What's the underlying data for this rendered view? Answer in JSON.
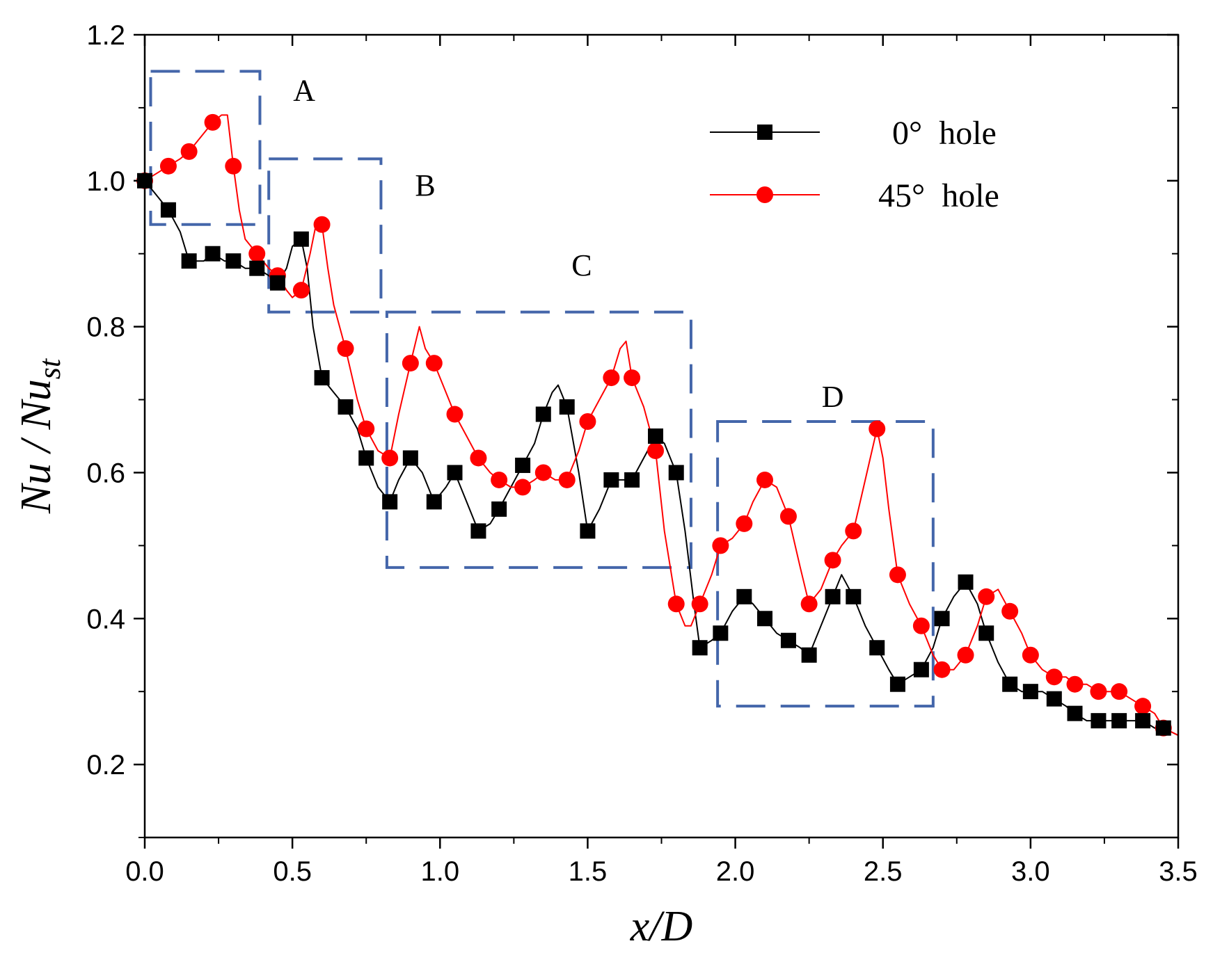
{
  "chart_data": {
    "type": "line",
    "title": "",
    "xlabel": "x/D",
    "ylabel": {
      "base": "Nu / Nu",
      "sub": "st"
    },
    "xlim": [
      0.0,
      3.5
    ],
    "ylim": [
      0.1,
      1.2
    ],
    "xticks": [
      "0.0",
      "0.5",
      "1.0",
      "1.5",
      "2.0",
      "2.5",
      "3.0",
      "3.5"
    ],
    "yticks": [
      "0.2",
      "0.4",
      "0.6",
      "0.8",
      "1.0",
      "1.2"
    ],
    "xtick_values": [
      0.0,
      0.5,
      1.0,
      1.5,
      2.0,
      2.5,
      3.0,
      3.5
    ],
    "ytick_values": [
      0.2,
      0.4,
      0.6,
      0.8,
      1.0,
      1.2
    ],
    "legend_position": "top-right",
    "series": [
      {
        "name": "0°  hole",
        "color": "#000000",
        "marker": "square",
        "markers": {
          "x": [
            0.0,
            0.08,
            0.15,
            0.23,
            0.3,
            0.38,
            0.45,
            0.53,
            0.6,
            0.68,
            0.75,
            0.83,
            0.9,
            0.98,
            1.05,
            1.13,
            1.2,
            1.28,
            1.35,
            1.43,
            1.5,
            1.58,
            1.65,
            1.73,
            1.8,
            1.88,
            1.95,
            2.03,
            2.1,
            2.18,
            2.25,
            2.33,
            2.4,
            2.48,
            2.55,
            2.63,
            2.7,
            2.78,
            2.85,
            2.93,
            3.0,
            3.08,
            3.15,
            3.23,
            3.3,
            3.38,
            3.45
          ],
          "y": [
            1.0,
            0.96,
            0.89,
            0.9,
            0.89,
            0.88,
            0.86,
            0.92,
            0.73,
            0.69,
            0.62,
            0.56,
            0.62,
            0.56,
            0.6,
            0.52,
            0.55,
            0.61,
            0.68,
            0.69,
            0.52,
            0.59,
            0.59,
            0.65,
            0.6,
            0.36,
            0.38,
            0.43,
            0.4,
            0.37,
            0.35,
            0.43,
            0.43,
            0.36,
            0.31,
            0.33,
            0.4,
            0.45,
            0.38,
            0.31,
            0.3,
            0.29,
            0.27,
            0.26,
            0.26,
            0.26,
            0.25
          ]
        },
        "line": {
          "x": [
            0.0,
            0.04,
            0.08,
            0.12,
            0.15,
            0.2,
            0.23,
            0.27,
            0.3,
            0.34,
            0.38,
            0.42,
            0.45,
            0.48,
            0.5,
            0.53,
            0.55,
            0.57,
            0.6,
            0.64,
            0.68,
            0.72,
            0.75,
            0.79,
            0.83,
            0.86,
            0.9,
            0.94,
            0.98,
            1.02,
            1.05,
            1.09,
            1.13,
            1.17,
            1.2,
            1.24,
            1.28,
            1.32,
            1.35,
            1.38,
            1.4,
            1.43,
            1.47,
            1.5,
            1.54,
            1.58,
            1.62,
            1.65,
            1.69,
            1.73,
            1.76,
            1.8,
            1.83,
            1.86,
            1.88,
            1.92,
            1.95,
            1.99,
            2.03,
            2.06,
            2.1,
            2.14,
            2.18,
            2.22,
            2.25,
            2.29,
            2.33,
            2.36,
            2.4,
            2.44,
            2.48,
            2.52,
            2.55,
            2.59,
            2.63,
            2.67,
            2.7,
            2.74,
            2.78,
            2.82,
            2.85,
            2.89,
            2.93,
            2.97,
            3.0,
            3.04,
            3.08,
            3.12,
            3.15,
            3.19,
            3.23,
            3.27,
            3.3,
            3.34,
            3.38,
            3.42,
            3.45,
            3.5
          ],
          "y": [
            1.0,
            0.98,
            0.96,
            0.93,
            0.89,
            0.89,
            0.9,
            0.89,
            0.89,
            0.88,
            0.88,
            0.87,
            0.86,
            0.88,
            0.91,
            0.92,
            0.88,
            0.8,
            0.73,
            0.71,
            0.69,
            0.66,
            0.62,
            0.58,
            0.56,
            0.59,
            0.62,
            0.6,
            0.56,
            0.58,
            0.6,
            0.56,
            0.52,
            0.53,
            0.55,
            0.58,
            0.61,
            0.64,
            0.68,
            0.71,
            0.72,
            0.69,
            0.6,
            0.52,
            0.55,
            0.59,
            0.59,
            0.59,
            0.62,
            0.65,
            0.64,
            0.6,
            0.52,
            0.42,
            0.36,
            0.37,
            0.38,
            0.41,
            0.43,
            0.42,
            0.4,
            0.38,
            0.37,
            0.36,
            0.35,
            0.39,
            0.43,
            0.46,
            0.43,
            0.39,
            0.36,
            0.33,
            0.31,
            0.32,
            0.33,
            0.36,
            0.4,
            0.43,
            0.45,
            0.42,
            0.38,
            0.34,
            0.31,
            0.3,
            0.3,
            0.3,
            0.29,
            0.28,
            0.27,
            0.26,
            0.26,
            0.26,
            0.26,
            0.26,
            0.26,
            0.25,
            0.25,
            0.24
          ]
        }
      },
      {
        "name": "45°  hole",
        "color": "#ff0000",
        "marker": "circle",
        "markers": {
          "x": [
            0.0,
            0.08,
            0.15,
            0.23,
            0.3,
            0.38,
            0.45,
            0.53,
            0.6,
            0.68,
            0.75,
            0.83,
            0.9,
            0.98,
            1.05,
            1.13,
            1.2,
            1.28,
            1.35,
            1.43,
            1.5,
            1.58,
            1.65,
            1.73,
            1.8,
            1.88,
            1.95,
            2.03,
            2.1,
            2.18,
            2.25,
            2.33,
            2.4,
            2.48,
            2.55,
            2.63,
            2.7,
            2.78,
            2.85,
            2.93,
            3.0,
            3.08,
            3.15,
            3.23,
            3.3,
            3.38,
            3.45
          ],
          "y": [
            1.0,
            1.02,
            1.04,
            1.08,
            1.02,
            0.9,
            0.87,
            0.85,
            0.94,
            0.77,
            0.66,
            0.62,
            0.75,
            0.75,
            0.68,
            0.62,
            0.59,
            0.58,
            0.6,
            0.59,
            0.67,
            0.73,
            0.73,
            0.63,
            0.42,
            0.42,
            0.5,
            0.53,
            0.59,
            0.54,
            0.42,
            0.48,
            0.52,
            0.66,
            0.46,
            0.39,
            0.33,
            0.35,
            0.43,
            0.41,
            0.35,
            0.32,
            0.31,
            0.3,
            0.3,
            0.28,
            0.25
          ]
        },
        "line": {
          "x": [
            0.0,
            0.04,
            0.08,
            0.12,
            0.15,
            0.19,
            0.23,
            0.26,
            0.28,
            0.3,
            0.32,
            0.34,
            0.38,
            0.42,
            0.45,
            0.48,
            0.5,
            0.53,
            0.56,
            0.58,
            0.6,
            0.62,
            0.64,
            0.68,
            0.72,
            0.75,
            0.79,
            0.83,
            0.86,
            0.9,
            0.93,
            0.95,
            0.98,
            1.02,
            1.05,
            1.09,
            1.13,
            1.17,
            1.2,
            1.24,
            1.28,
            1.32,
            1.35,
            1.39,
            1.43,
            1.47,
            1.5,
            1.54,
            1.58,
            1.61,
            1.63,
            1.65,
            1.69,
            1.73,
            1.76,
            1.8,
            1.83,
            1.85,
            1.88,
            1.92,
            1.95,
            1.99,
            2.03,
            2.06,
            2.1,
            2.14,
            2.18,
            2.22,
            2.25,
            2.29,
            2.33,
            2.36,
            2.4,
            2.44,
            2.48,
            2.5,
            2.52,
            2.55,
            2.59,
            2.63,
            2.67,
            2.7,
            2.74,
            2.78,
            2.82,
            2.85,
            2.89,
            2.93,
            2.97,
            3.0,
            3.04,
            3.08,
            3.12,
            3.15,
            3.19,
            3.23,
            3.27,
            3.3,
            3.34,
            3.38,
            3.42,
            3.45,
            3.5
          ],
          "y": [
            1.0,
            1.01,
            1.02,
            1.03,
            1.04,
            1.06,
            1.08,
            1.09,
            1.09,
            1.02,
            0.96,
            0.92,
            0.9,
            0.88,
            0.87,
            0.85,
            0.84,
            0.85,
            0.9,
            0.94,
            0.94,
            0.88,
            0.83,
            0.77,
            0.7,
            0.66,
            0.63,
            0.62,
            0.68,
            0.75,
            0.8,
            0.77,
            0.75,
            0.71,
            0.68,
            0.65,
            0.62,
            0.6,
            0.59,
            0.58,
            0.58,
            0.59,
            0.6,
            0.59,
            0.59,
            0.63,
            0.67,
            0.7,
            0.73,
            0.77,
            0.78,
            0.73,
            0.69,
            0.63,
            0.52,
            0.42,
            0.39,
            0.39,
            0.42,
            0.46,
            0.5,
            0.51,
            0.53,
            0.56,
            0.59,
            0.58,
            0.54,
            0.47,
            0.42,
            0.44,
            0.48,
            0.5,
            0.52,
            0.59,
            0.66,
            0.62,
            0.55,
            0.46,
            0.42,
            0.39,
            0.35,
            0.33,
            0.33,
            0.35,
            0.39,
            0.43,
            0.44,
            0.41,
            0.38,
            0.35,
            0.33,
            0.32,
            0.32,
            0.31,
            0.31,
            0.3,
            0.3,
            0.3,
            0.29,
            0.28,
            0.27,
            0.25,
            0.24
          ]
        }
      }
    ],
    "regions": [
      {
        "label": "A",
        "x0": 0.02,
        "x1": 0.39,
        "y0": 0.94,
        "y1": 1.15,
        "label_x": 0.54,
        "label_y": 1.11
      },
      {
        "label": "B",
        "x0": 0.42,
        "x1": 0.8,
        "y0": 0.82,
        "y1": 1.03,
        "label_x": 0.95,
        "label_y": 0.98
      },
      {
        "label": "C",
        "x0": 0.82,
        "x1": 1.85,
        "y0": 0.47,
        "y1": 0.82,
        "label_x": 1.48,
        "label_y": 0.87
      },
      {
        "label": "D",
        "x0": 1.94,
        "x1": 2.67,
        "y0": 0.28,
        "y1": 0.67,
        "label_x": 2.33,
        "label_y": 0.69
      }
    ],
    "colors": {
      "region_box": "#4466aa",
      "axis": "#000000"
    }
  }
}
